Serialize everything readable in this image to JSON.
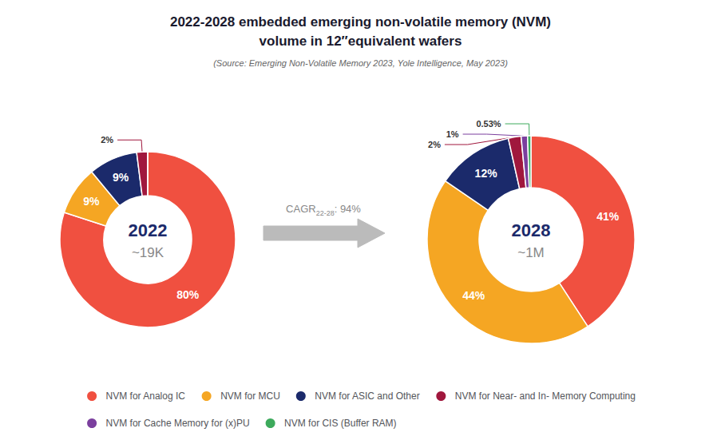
{
  "chart_data": [
    {
      "type": "pie",
      "title": "2022-2028 embedded emerging non-volatile memory (NVM)\nvolume in 12″equivalent wafers",
      "subtitle": "(Source: Emerging Non-Volatile Memory 2023, Yole Intelligence, May 2023)",
      "categories": [
        "NVM for Analog IC",
        "NVM for MCU",
        "NVM for ASIC and Other",
        "NVM for Near- and In- Memory Computing",
        "NVM for Cache Memory for (x)PU"
      ],
      "values": [
        80,
        9,
        9,
        2,
        0.01
      ],
      "value_labels": [
        "80%",
        "9%",
        "9%",
        "2%",
        null
      ],
      "colors": [
        "#F05040",
        "#F5A623",
        "#1B2A6B",
        "#A0173D",
        "#7B3F9E"
      ],
      "data_labels": true,
      "legend": "bottom",
      "annotations": [
        "2022",
        "~19K"
      ]
    },
    {
      "type": "pie",
      "categories": [
        "NVM for Analog IC",
        "NVM for MCU",
        "NVM for ASIC and Other",
        "NVM for Near- and In- Memory Computing",
        "NVM for Cache Memory for (x)PU",
        "NVM for CIS (Buffer RAM)"
      ],
      "values": [
        41,
        44,
        12,
        2,
        1,
        0.53
      ],
      "value_labels": [
        "41%",
        "44%",
        "12%",
        "2%",
        "1%",
        "0.53%"
      ],
      "colors": [
        "#F05040",
        "#F5A623",
        "#1B2A6B",
        "#A0173D",
        "#7B3F9E",
        "#3DAA5C"
      ],
      "data_labels": true,
      "legend": "bottom",
      "annotations": [
        "2028",
        "~1M",
        [
          "CAGR",
          "22-28",
          ": 94%"
        ]
      ]
    }
  ]
}
